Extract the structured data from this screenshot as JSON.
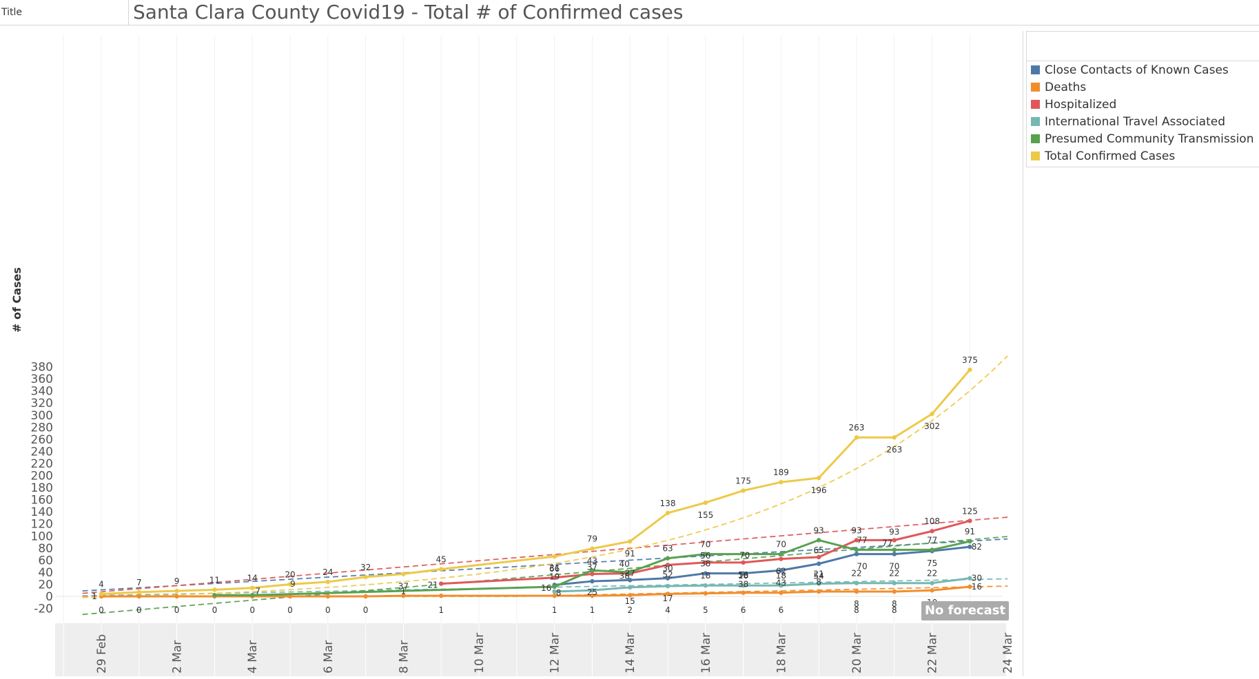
{
  "title_bar": {
    "caption": "Title",
    "text": "Santa Clara County Covid19 - Total # of Confirmed cases"
  },
  "badge": {
    "no_forecast": "No forecast"
  },
  "legend": {
    "items": [
      {
        "label": "Close Contacts of Known Cases",
        "color": "#4e79a7"
      },
      {
        "label": "Deaths",
        "color": "#f28e2b"
      },
      {
        "label": "Hospitalized",
        "color": "#e15759"
      },
      {
        "label": "International Travel Associated",
        "color": "#76b7b2"
      },
      {
        "label": "Presumed Community Transmission",
        "color": "#59a14f"
      },
      {
        "label": "Total Confirmed Cases",
        "color": "#edc948"
      }
    ]
  },
  "chart_data": {
    "type": "line",
    "title": "Santa Clara County Covid19 - Total # of Confirmed cases",
    "xlabel": "",
    "ylabel": "# of Cases",
    "x_start": "29 Feb",
    "x_end": "24 Mar",
    "ylim": [
      -25,
      395
    ],
    "yticks": [
      -20,
      0,
      20,
      40,
      60,
      80,
      100,
      120,
      140,
      160,
      180,
      200,
      220,
      240,
      260,
      280,
      300,
      320,
      340,
      360,
      380
    ],
    "xticks": [
      "29 Feb",
      "2 Mar",
      "4 Mar",
      "6 Mar",
      "8 Mar",
      "10 Mar",
      "12 Mar",
      "14 Mar",
      "16 Mar",
      "18 Mar",
      "20 Mar",
      "22 Mar",
      "24 Mar"
    ],
    "trend_lines": true,
    "grid": "vertical-light",
    "legend_position": "right",
    "series": [
      {
        "name": "Close Contacts of Known Cases",
        "color": "#4e79a7",
        "points": [
          [
            "12 Mar",
            19
          ],
          [
            "13 Mar",
            25
          ],
          [
            "14 Mar",
            27
          ],
          [
            "15 Mar",
            30
          ],
          [
            "16 Mar",
            38
          ],
          [
            "17 Mar",
            38
          ],
          [
            "18 Mar",
            43
          ],
          [
            "19 Mar",
            54
          ],
          [
            "20 Mar",
            70
          ],
          [
            "21 Mar",
            70
          ],
          [
            "22 Mar",
            75
          ],
          [
            "23 Mar",
            82
          ]
        ],
        "trend": [
          [
            -0.5,
            9
          ],
          [
            24,
            95
          ]
        ]
      },
      {
        "name": "Deaths",
        "color": "#f28e2b",
        "points": [
          [
            "29 Feb",
            0
          ],
          [
            "1 Mar",
            0
          ],
          [
            "2 Mar",
            0
          ],
          [
            "3 Mar",
            0
          ],
          [
            "4 Mar",
            0
          ],
          [
            "5 Mar",
            0
          ],
          [
            "6 Mar",
            0
          ],
          [
            "7 Mar",
            0
          ],
          [
            "8 Mar",
            1
          ],
          [
            "9 Mar",
            1
          ],
          [
            "12 Mar",
            1
          ],
          [
            "13 Mar",
            1
          ],
          [
            "14 Mar",
            2
          ],
          [
            "15 Mar",
            4
          ],
          [
            "16 Mar",
            5
          ],
          [
            "17 Mar",
            6
          ],
          [
            "18 Mar",
            6
          ],
          [
            "19 Mar",
            8
          ],
          [
            "20 Mar",
            8
          ],
          [
            "21 Mar",
            8
          ],
          [
            "22 Mar",
            10
          ],
          [
            "23 Mar",
            16
          ]
        ],
        "trend": [
          [
            -0.5,
            0
          ],
          [
            11,
            0
          ],
          [
            24,
            17
          ]
        ]
      },
      {
        "name": "Hospitalized",
        "color": "#e15759",
        "points": [
          [
            "9 Mar",
            21
          ],
          [
            "12 Mar",
            31
          ],
          [
            "13 Mar",
            37
          ],
          [
            "14 Mar",
            38
          ],
          [
            "15 Mar",
            52
          ],
          [
            "16 Mar",
            56
          ],
          [
            "17 Mar",
            56
          ],
          [
            "18 Mar",
            62
          ],
          [
            "19 Mar",
            65
          ],
          [
            "20 Mar",
            93
          ],
          [
            "21 Mar",
            93
          ],
          [
            "22 Mar",
            108
          ],
          [
            "23 Mar",
            125
          ]
        ],
        "trend": [
          [
            -0.5,
            5
          ],
          [
            24,
            131
          ]
        ]
      },
      {
        "name": "International Travel Associated",
        "color": "#76b7b2",
        "points": [
          [
            "12 Mar",
            8
          ],
          [
            "13 Mar",
            10
          ],
          [
            "14 Mar",
            15
          ],
          [
            "15 Mar",
            17
          ],
          [
            "16 Mar",
            18
          ],
          [
            "17 Mar",
            18
          ],
          [
            "18 Mar",
            18
          ],
          [
            "19 Mar",
            21
          ],
          [
            "20 Mar",
            22
          ],
          [
            "21 Mar",
            22
          ],
          [
            "22 Mar",
            22
          ],
          [
            "23 Mar",
            30
          ]
        ],
        "trend": [
          [
            -0.5,
            1
          ],
          [
            24,
            29
          ]
        ]
      },
      {
        "name": "Presumed Community Transmission",
        "color": "#59a14f",
        "points": [
          [
            "3 Mar",
            2
          ],
          [
            "4 Mar",
            2
          ],
          [
            "12 Mar",
            16
          ],
          [
            "13 Mar",
            43
          ],
          [
            "14 Mar",
            40
          ],
          [
            "15 Mar",
            63
          ],
          [
            "16 Mar",
            70
          ],
          [
            "17 Mar",
            70
          ],
          [
            "18 Mar",
            70
          ],
          [
            "19 Mar",
            93
          ],
          [
            "20 Mar",
            77
          ],
          [
            "21 Mar",
            77
          ],
          [
            "22 Mar",
            77
          ],
          [
            "23 Mar",
            91
          ]
        ],
        "trend": [
          [
            -0.5,
            -30
          ],
          [
            24,
            99
          ]
        ]
      },
      {
        "name": "Total Confirmed Cases",
        "color": "#edc948",
        "points": [
          [
            "29 Feb",
            4
          ],
          [
            "1 Mar",
            7
          ],
          [
            "2 Mar",
            9
          ],
          [
            "3 Mar",
            11
          ],
          [
            "4 Mar",
            14
          ],
          [
            "5 Mar",
            20
          ],
          [
            "6 Mar",
            24
          ],
          [
            "7 Mar",
            32
          ],
          [
            "8 Mar",
            37
          ],
          [
            "9 Mar",
            45
          ],
          [
            "12 Mar",
            66
          ],
          [
            "13 Mar",
            79
          ],
          [
            "14 Mar",
            91
          ],
          [
            "15 Mar",
            138
          ],
          [
            "16 Mar",
            155
          ],
          [
            "17 Mar",
            175
          ],
          [
            "18 Mar",
            189
          ],
          [
            "19 Mar",
            196
          ],
          [
            "20 Mar",
            263
          ],
          [
            "21 Mar",
            263
          ],
          [
            "22 Mar",
            302
          ],
          [
            "23 Mar",
            375
          ]
        ],
        "trend_curve": "exponential",
        "trend": [
          [
            -0.5,
            -2
          ],
          [
            24,
            398
          ]
        ]
      }
    ],
    "data_labels": [
      {
        "d": 0,
        "v": 4,
        "t": "4",
        "dy": -14
      },
      {
        "d": 1,
        "v": 7,
        "t": "7",
        "dy": -14
      },
      {
        "d": 2,
        "v": 9,
        "t": "9",
        "dy": -14
      },
      {
        "d": 3,
        "v": 11,
        "t": "11",
        "dy": -14
      },
      {
        "d": 4,
        "v": 14,
        "t": "14",
        "dy": -14
      },
      {
        "d": 5,
        "v": 20,
        "t": "20",
        "dy": -14
      },
      {
        "d": 6,
        "v": 24,
        "t": "24",
        "dy": -14
      },
      {
        "d": 7,
        "v": 32,
        "t": "32",
        "dy": -14
      },
      {
        "d": 8,
        "v": 37,
        "t": "37",
        "dy": 18
      },
      {
        "d": 9,
        "v": 45,
        "t": "45",
        "dy": -14
      },
      {
        "d": 12,
        "v": 66,
        "t": "66",
        "dy": 18
      },
      {
        "d": 13,
        "v": 79,
        "t": "79",
        "dy": -14
      },
      {
        "d": 14,
        "v": 91,
        "t": "91",
        "dy": 18
      },
      {
        "d": 15,
        "v": 138,
        "t": "138",
        "dy": -14
      },
      {
        "d": 16,
        "v": 155,
        "t": "155",
        "dy": 18
      },
      {
        "d": 17,
        "v": 175,
        "t": "175",
        "dy": -14
      },
      {
        "d": 18,
        "v": 189,
        "t": "189",
        "dy": -14
      },
      {
        "d": 19,
        "v": 196,
        "t": "196",
        "dy": 18
      },
      {
        "d": 20,
        "v": 263,
        "t": "263",
        "dy": -14
      },
      {
        "d": 21,
        "v": 263,
        "t": "263",
        "dy": 18
      },
      {
        "d": 22,
        "v": 302,
        "t": "302",
        "dy": 18
      },
      {
        "d": 23,
        "v": 375,
        "t": "375",
        "dy": -14
      },
      {
        "d": 0,
        "v": 0,
        "t": "1",
        "dy": 0,
        "dx": -10
      },
      {
        "d": 4,
        "v": 6,
        "t": "7",
        "dy": -2,
        "dx": 8
      },
      {
        "d": 5,
        "v": 9,
        "t": "9",
        "dy": -10,
        "dx": 4
      },
      {
        "d": 8,
        "v": 6,
        "t": "1",
        "dy": -2,
        "dx": 0
      },
      {
        "d": 9,
        "v": 21,
        "t": "21",
        "dy": 2,
        "dx": -12
      },
      {
        "d": 12,
        "v": 31,
        "t": "31",
        "dy": -14
      },
      {
        "d": 12,
        "v": 19,
        "t": "19",
        "dy": -12
      },
      {
        "d": 12,
        "v": 16,
        "t": "16",
        "dy": 2,
        "dx": -12
      },
      {
        "d": 12,
        "v": 8,
        "t": "8",
        "dy": 2,
        "dx": 6
      },
      {
        "d": 13,
        "v": 43,
        "t": "43",
        "dy": -14
      },
      {
        "d": 13,
        "v": 37,
        "t": "37",
        "dy": -10
      },
      {
        "d": 13,
        "v": 25,
        "t": "25",
        "dy": 16
      },
      {
        "d": 14,
        "v": 40,
        "t": "40",
        "dy": -12,
        "dx": -8
      },
      {
        "d": 14,
        "v": 38,
        "t": "38",
        "dy": 4,
        "dx": -8
      },
      {
        "d": 14,
        "v": 27,
        "t": "27",
        "dy": -10
      },
      {
        "d": 14,
        "v": 15,
        "t": "15",
        "dy": 20
      },
      {
        "d": 15,
        "v": 63,
        "t": "63",
        "dy": -14
      },
      {
        "d": 15,
        "v": 52,
        "t": "52",
        "dy": 14
      },
      {
        "d": 15,
        "v": 30,
        "t": "30",
        "dy": -14
      },
      {
        "d": 15,
        "v": 17,
        "t": "17",
        "dy": 18
      },
      {
        "d": 16,
        "v": 70,
        "t": "70",
        "dy": -14
      },
      {
        "d": 16,
        "v": 56,
        "t": "56",
        "dy": -10
      },
      {
        "d": 16,
        "v": 38,
        "t": "38",
        "dy": -14
      },
      {
        "d": 16,
        "v": 18,
        "t": "18",
        "dy": -14
      },
      {
        "d": 17,
        "v": 70,
        "t": "70",
        "dy": 2,
        "dx": 2
      },
      {
        "d": 17,
        "v": 56,
        "t": "56",
        "dy": 18
      },
      {
        "d": 17,
        "v": 38,
        "t": "38",
        "dy": 16
      },
      {
        "d": 17,
        "v": 18,
        "t": "18",
        "dy": -14
      },
      {
        "d": 18,
        "v": 70,
        "t": "70",
        "dy": -14
      },
      {
        "d": 18,
        "v": 62,
        "t": "62",
        "dy": 18
      },
      {
        "d": 18,
        "v": 43,
        "t": "43",
        "dy": 18
      },
      {
        "d": 18,
        "v": 18,
        "t": "18",
        "dy": -14
      },
      {
        "d": 19,
        "v": 93,
        "t": "93",
        "dy": -14
      },
      {
        "d": 19,
        "v": 65,
        "t": "65",
        "dy": -10
      },
      {
        "d": 19,
        "v": 54,
        "t": "54",
        "dy": 18
      },
      {
        "d": 19,
        "v": 21,
        "t": "21",
        "dy": -14
      },
      {
        "d": 19,
        "v": 8,
        "t": "8",
        "dy": -14
      },
      {
        "d": 20,
        "v": 93,
        "t": "93",
        "dy": -14
      },
      {
        "d": 20,
        "v": 77,
        "t": "77",
        "dy": -14,
        "dx": 8
      },
      {
        "d": 20,
        "v": 70,
        "t": "70",
        "dy": 18,
        "dx": 8
      },
      {
        "d": 20,
        "v": 22,
        "t": "22",
        "dy": -14
      },
      {
        "d": 20,
        "v": 8,
        "t": "8",
        "dy": 18
      },
      {
        "d": 21,
        "v": 93,
        "t": "93",
        "dy": -12
      },
      {
        "d": 21,
        "v": 77,
        "t": "77",
        "dy": -10,
        "dx": -10
      },
      {
        "d": 21,
        "v": 70,
        "t": "70",
        "dy": 18
      },
      {
        "d": 21,
        "v": 22,
        "t": "22",
        "dy": -14
      },
      {
        "d": 21,
        "v": 8,
        "t": "8",
        "dy": 18
      },
      {
        "d": 22,
        "v": 108,
        "t": "108",
        "dy": -14
      },
      {
        "d": 22,
        "v": 77,
        "t": "77",
        "dy": -14
      },
      {
        "d": 22,
        "v": 75,
        "t": "75",
        "dy": 18
      },
      {
        "d": 22,
        "v": 22,
        "t": "22",
        "dy": -14
      },
      {
        "d": 22,
        "v": 10,
        "t": "10",
        "dy": 18
      },
      {
        "d": 23,
        "v": 125,
        "t": "125",
        "dy": -14
      },
      {
        "d": 23,
        "v": 91,
        "t": "91",
        "dy": -14
      },
      {
        "d": 23,
        "v": 82,
        "t": "82",
        "dy": 0,
        "dx": 10
      },
      {
        "d": 23,
        "v": 30,
        "t": "30",
        "dy": 0,
        "dx": 10
      },
      {
        "d": 23,
        "v": 16,
        "t": "16",
        "dy": 0,
        "dx": 10
      },
      {
        "d": 0,
        "v": 0,
        "t": "0",
        "dy": 20
      },
      {
        "d": 1,
        "v": 0,
        "t": "0",
        "dy": 20
      },
      {
        "d": 2,
        "v": 0,
        "t": "0",
        "dy": 20
      },
      {
        "d": 3,
        "v": 0,
        "t": "0",
        "dy": 20
      },
      {
        "d": 4,
        "v": 0,
        "t": "0",
        "dy": 20
      },
      {
        "d": 5,
        "v": 0,
        "t": "0",
        "dy": 20
      },
      {
        "d": 6,
        "v": 0,
        "t": "0",
        "dy": 20
      },
      {
        "d": 7,
        "v": 0,
        "t": "0",
        "dy": 20
      },
      {
        "d": 9,
        "v": 0,
        "t": "1",
        "dy": 20
      },
      {
        "d": 12,
        "v": 0,
        "t": "1",
        "dy": 20
      },
      {
        "d": 13,
        "v": 0,
        "t": "1",
        "dy": 20
      },
      {
        "d": 14,
        "v": 0,
        "t": "2",
        "dy": 20
      },
      {
        "d": 15,
        "v": 0,
        "t": "4",
        "dy": 20
      },
      {
        "d": 16,
        "v": 0,
        "t": "5",
        "dy": 20
      },
      {
        "d": 17,
        "v": 0,
        "t": "6",
        "dy": 20
      },
      {
        "d": 18,
        "v": 0,
        "t": "6",
        "dy": 20
      },
      {
        "d": 20,
        "v": 0,
        "t": "8",
        "dy": 20
      },
      {
        "d": 21,
        "v": 0,
        "t": "8",
        "dy": 20
      },
      {
        "d": 22,
        "v": 0,
        "t": "10",
        "dy": 20
      }
    ]
  }
}
